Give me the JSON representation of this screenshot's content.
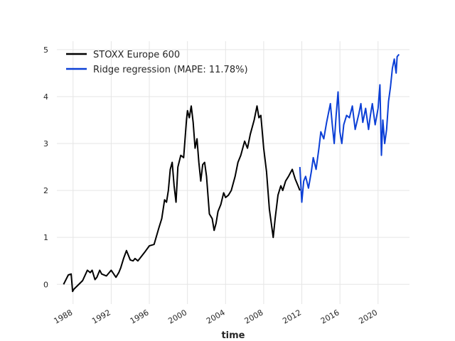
{
  "chart_data": {
    "type": "line",
    "title": "",
    "xlabel": "time",
    "ylabel": "",
    "xlim": [
      1986.3,
      2023.3
    ],
    "ylim": [
      -0.42,
      5.18
    ],
    "x_ticks": [
      1988,
      1992,
      1996,
      2000,
      2004,
      2008,
      2012,
      2016,
      2020
    ],
    "x_tick_labels": [
      "1988",
      "1992",
      "1996",
      "2000",
      "2004",
      "2008",
      "2012",
      "2016",
      "2020"
    ],
    "y_ticks": [
      0,
      1,
      2,
      3,
      4,
      5
    ],
    "y_tick_labels": [
      "0",
      "1",
      "2",
      "3",
      "4",
      "5"
    ],
    "grid": true,
    "legend_position": "top-left",
    "series": [
      {
        "name": "STOXX Europe 600",
        "color": "#000000",
        "x": [
          1987.0,
          1987.5,
          1987.8,
          1987.95,
          1988.1,
          1988.5,
          1989.0,
          1989.5,
          1989.8,
          1990.0,
          1990.3,
          1990.5,
          1990.8,
          1991.0,
          1991.5,
          1992.0,
          1992.5,
          1992.8,
          1993.0,
          1993.3,
          1993.6,
          1994.0,
          1994.3,
          1994.5,
          1994.8,
          1995.0,
          1995.5,
          1996.0,
          1996.5,
          1997.0,
          1997.3,
          1997.6,
          1997.8,
          1998.0,
          1998.2,
          1998.4,
          1998.6,
          1998.8,
          1999.0,
          1999.3,
          1999.6,
          1999.9,
          2000.0,
          2000.2,
          2000.4,
          2000.6,
          2000.8,
          2001.0,
          2001.2,
          2001.4,
          2001.6,
          2001.8,
          2002.0,
          2002.3,
          2002.6,
          2002.8,
          2003.0,
          2003.2,
          2003.5,
          2003.8,
          2004.0,
          2004.3,
          2004.6,
          2005.0,
          2005.3,
          2005.6,
          2006.0,
          2006.3,
          2006.6,
          2007.0,
          2007.3,
          2007.5,
          2007.7,
          2008.0,
          2008.3,
          2008.6,
          2008.8,
          2009.0,
          2009.2,
          2009.5,
          2009.8,
          2010.0,
          2010.3,
          2010.6,
          2011.0,
          2011.3,
          2011.6,
          2011.8
        ],
        "y": [
          0.0,
          0.2,
          0.22,
          -0.15,
          -0.1,
          -0.02,
          0.08,
          0.3,
          0.25,
          0.3,
          0.1,
          0.15,
          0.3,
          0.22,
          0.18,
          0.3,
          0.15,
          0.25,
          0.35,
          0.55,
          0.72,
          0.52,
          0.5,
          0.55,
          0.5,
          0.55,
          0.68,
          0.82,
          0.85,
          1.2,
          1.4,
          1.8,
          1.75,
          2.0,
          2.45,
          2.6,
          2.1,
          1.75,
          2.5,
          2.75,
          2.7,
          3.5,
          3.7,
          3.55,
          3.8,
          3.45,
          2.9,
          3.1,
          2.6,
          2.2,
          2.55,
          2.6,
          2.3,
          1.5,
          1.4,
          1.15,
          1.3,
          1.55,
          1.7,
          1.95,
          1.85,
          1.9,
          2.0,
          2.3,
          2.6,
          2.75,
          3.05,
          2.9,
          3.2,
          3.5,
          3.8,
          3.55,
          3.6,
          2.9,
          2.4,
          1.6,
          1.3,
          1.0,
          1.4,
          1.9,
          2.1,
          2.0,
          2.2,
          2.3,
          2.45,
          2.25,
          2.1,
          2.0
        ]
      },
      {
        "name": "Ridge regression (MAPE: 11.78%)",
        "color": "#0b3fd6",
        "x": [
          2011.8,
          2012.0,
          2012.2,
          2012.4,
          2012.7,
          2013.0,
          2013.2,
          2013.5,
          2013.8,
          2014.0,
          2014.3,
          2014.6,
          2015.0,
          2015.2,
          2015.4,
          2015.6,
          2015.8,
          2016.0,
          2016.2,
          2016.4,
          2016.7,
          2017.0,
          2017.3,
          2017.6,
          2018.0,
          2018.2,
          2018.4,
          2018.7,
          2019.0,
          2019.2,
          2019.4,
          2019.7,
          2020.0,
          2020.2,
          2020.35,
          2020.5,
          2020.7,
          2020.9,
          2021.1,
          2021.3,
          2021.5,
          2021.7,
          2021.9,
          2022.0,
          2022.2
        ],
        "y": [
          2.5,
          1.75,
          2.2,
          2.3,
          2.05,
          2.4,
          2.7,
          2.45,
          2.9,
          3.25,
          3.1,
          3.45,
          3.85,
          3.4,
          3.0,
          3.6,
          4.1,
          3.25,
          3.0,
          3.4,
          3.6,
          3.55,
          3.8,
          3.3,
          3.65,
          3.85,
          3.45,
          3.75,
          3.3,
          3.6,
          3.85,
          3.4,
          3.75,
          4.25,
          2.75,
          3.5,
          3.0,
          3.3,
          3.9,
          4.2,
          4.6,
          4.8,
          4.5,
          4.85,
          4.9
        ]
      }
    ]
  }
}
